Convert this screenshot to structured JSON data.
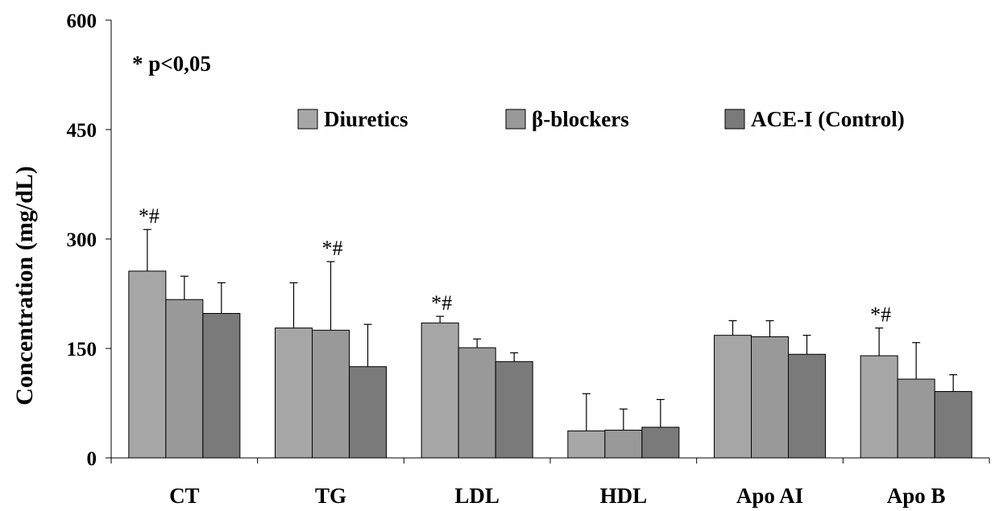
{
  "chart_data": {
    "type": "bar",
    "title": "",
    "xlabel": "",
    "ylabel": "Concentration (mg/dL)",
    "ylim": [
      0,
      600
    ],
    "yticks": [
      "0",
      "150",
      "300",
      "450",
      "600"
    ],
    "grid": false,
    "legend_position": "top-right",
    "note": "* p<0,05",
    "categories": [
      "CT",
      "TG",
      "LDL",
      "HDL",
      "Apo AI",
      "Apo B"
    ],
    "series": [
      {
        "name": "Diuretics",
        "color": "#a6a6a6",
        "values": [
          256,
          178,
          185,
          37,
          168,
          140
        ],
        "errors": [
          57,
          62,
          9,
          51,
          20,
          38
        ]
      },
      {
        "name": "β-blockers",
        "color": "#999999",
        "values": [
          217,
          175,
          151,
          38,
          166,
          108
        ],
        "errors": [
          32,
          94,
          12,
          29,
          22,
          50
        ]
      },
      {
        "name": "ACE-I (Control)",
        "color": "#7a7a7a",
        "values": [
          198,
          125,
          132,
          42,
          142,
          91
        ],
        "errors": [
          42,
          58,
          12,
          38,
          26,
          23
        ]
      }
    ],
    "annotations": [
      {
        "text": "*#",
        "category": "CT",
        "series": "Diuretics"
      },
      {
        "text": "*#",
        "category": "TG",
        "series": "β-blockers"
      },
      {
        "text": "*#",
        "category": "LDL",
        "series": "Diuretics"
      },
      {
        "text": "*#",
        "category": "Apo B",
        "series": "Diuretics"
      }
    ]
  }
}
